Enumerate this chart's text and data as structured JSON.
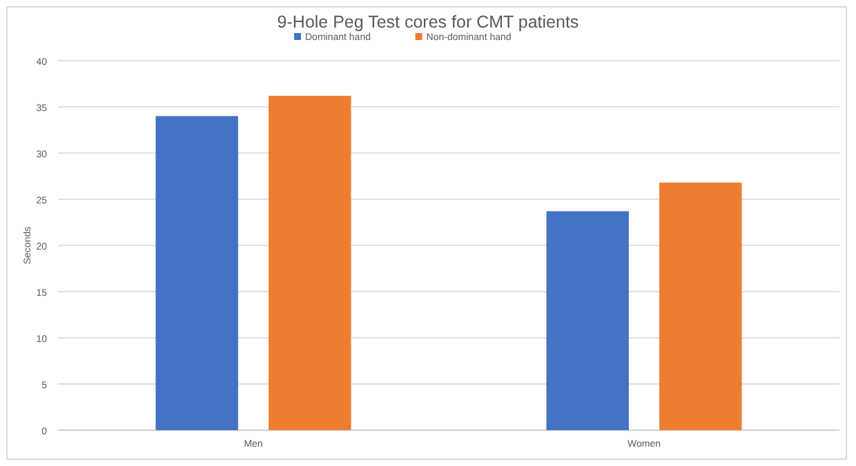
{
  "chart_data": {
    "type": "bar",
    "title": "9-Hole Peg Test cores for CMT patients",
    "ylabel": "Seconds",
    "categories": [
      "Men",
      "Women"
    ],
    "series": [
      {
        "name": "Dominant hand",
        "color": "#4472c4",
        "values": [
          34.0,
          23.7
        ]
      },
      {
        "name": "Non-dominant hand",
        "color": "#ed7d31",
        "values": [
          36.2,
          26.8
        ]
      }
    ],
    "ylim": [
      0,
      40
    ],
    "yticks": [
      0,
      5,
      10,
      15,
      20,
      25,
      30,
      35,
      40
    ],
    "grid": "y",
    "legend": "top"
  }
}
